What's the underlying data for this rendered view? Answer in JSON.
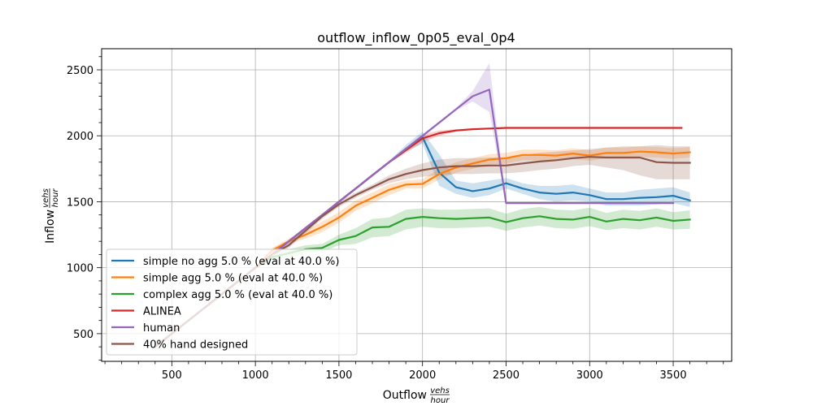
{
  "chart_data": {
    "type": "line",
    "title": "outflow_inflow_0p05_eval_0p4",
    "xlabel": "Outflow",
    "xlabel_frac_num": "vehs",
    "xlabel_frac_den": "hour",
    "ylabel": "Inflow",
    "ylabel_frac_num": "vehs",
    "ylabel_frac_den": "hour",
    "xlim": [
      80,
      3850
    ],
    "ylim": [
      290,
      2660
    ],
    "xticks": [
      500,
      1000,
      1500,
      2000,
      2500,
      3000,
      3500
    ],
    "xtick_labels": [
      "500",
      "1000",
      "1500",
      "2000",
      "2500",
      "3000",
      "3500"
    ],
    "yticks": [
      500,
      1000,
      1500,
      2000,
      2500
    ],
    "ytick_labels": [
      "500",
      "1000",
      "1500",
      "2000",
      "2500"
    ],
    "grid": true,
    "legend_position": "lower-left",
    "series": [
      {
        "name": "simple no agg 5.0 % (eval at 40.0 %)",
        "color": "#1f77b4",
        "x": [
          400,
          500,
          600,
          700,
          800,
          900,
          1000,
          1100,
          1200,
          1300,
          1400,
          1500,
          1600,
          1700,
          1800,
          1900,
          2000,
          2100,
          2200,
          2300,
          2400,
          2500,
          2600,
          2700,
          2800,
          2900,
          3000,
          3100,
          3200,
          3300,
          3400,
          3500,
          3600
        ],
        "y": [
          400,
          500,
          600,
          700,
          800,
          900,
          1000,
          1100,
          1200,
          1300,
          1400,
          1500,
          1600,
          1700,
          1800,
          1900,
          1990,
          1720,
          1610,
          1580,
          1600,
          1640,
          1600,
          1570,
          1560,
          1570,
          1550,
          1520,
          1520,
          1530,
          1535,
          1545,
          1510
        ],
        "lower": [
          390,
          490,
          590,
          690,
          790,
          890,
          990,
          1090,
          1190,
          1290,
          1390,
          1490,
          1590,
          1690,
          1790,
          1880,
          1940,
          1620,
          1560,
          1530,
          1550,
          1600,
          1560,
          1520,
          1500,
          1510,
          1500,
          1470,
          1470,
          1470,
          1480,
          1490,
          1460
        ],
        "upper": [
          410,
          510,
          610,
          710,
          810,
          910,
          1010,
          1110,
          1210,
          1310,
          1410,
          1510,
          1610,
          1710,
          1810,
          1930,
          2030,
          1860,
          1660,
          1640,
          1660,
          1680,
          1640,
          1620,
          1620,
          1630,
          1600,
          1570,
          1570,
          1590,
          1600,
          1610,
          1570
        ]
      },
      {
        "name": "simple agg 5.0 % (eval at 40.0 %)",
        "color": "#ff7f0e",
        "x": [
          400,
          500,
          600,
          700,
          800,
          900,
          1000,
          1100,
          1200,
          1300,
          1400,
          1500,
          1600,
          1700,
          1800,
          1900,
          2000,
          2100,
          2200,
          2300,
          2400,
          2500,
          2600,
          2700,
          2800,
          2900,
          3000,
          3100,
          3200,
          3300,
          3400,
          3500,
          3600
        ],
        "y": [
          400,
          500,
          600,
          700,
          800,
          900,
          1000,
          1130,
          1200,
          1250,
          1310,
          1380,
          1470,
          1530,
          1590,
          1630,
          1635,
          1710,
          1760,
          1790,
          1820,
          1830,
          1855,
          1855,
          1850,
          1865,
          1850,
          1870,
          1870,
          1880,
          1875,
          1865,
          1875
        ],
        "lower": [
          390,
          490,
          590,
          690,
          790,
          890,
          990,
          1110,
          1180,
          1220,
          1270,
          1340,
          1430,
          1490,
          1550,
          1600,
          1600,
          1670,
          1720,
          1750,
          1780,
          1790,
          1815,
          1815,
          1810,
          1825,
          1810,
          1830,
          1830,
          1840,
          1835,
          1825,
          1835
        ],
        "upper": [
          410,
          510,
          610,
          710,
          810,
          910,
          1010,
          1150,
          1220,
          1280,
          1350,
          1420,
          1510,
          1570,
          1630,
          1660,
          1670,
          1750,
          1800,
          1830,
          1860,
          1870,
          1895,
          1895,
          1890,
          1905,
          1890,
          1910,
          1910,
          1920,
          1915,
          1905,
          1915
        ]
      },
      {
        "name": "complex agg 5.0 % (eval at 40.0 %)",
        "color": "#2ca02c",
        "x": [
          400,
          500,
          600,
          700,
          800,
          900,
          1000,
          1100,
          1200,
          1300,
          1400,
          1500,
          1600,
          1700,
          1800,
          1900,
          2000,
          2100,
          2200,
          2300,
          2400,
          2500,
          2600,
          2700,
          2800,
          2900,
          3000,
          3100,
          3200,
          3300,
          3400,
          3500,
          3600
        ],
        "y": [
          400,
          500,
          600,
          700,
          800,
          900,
          1000,
          1080,
          1110,
          1140,
          1150,
          1210,
          1240,
          1305,
          1310,
          1370,
          1385,
          1375,
          1370,
          1375,
          1380,
          1345,
          1375,
          1390,
          1370,
          1365,
          1385,
          1350,
          1370,
          1360,
          1380,
          1355,
          1365
        ],
        "lower": [
          390,
          490,
          590,
          690,
          790,
          890,
          990,
          1060,
          1080,
          1110,
          1120,
          1170,
          1180,
          1230,
          1240,
          1290,
          1310,
          1300,
          1300,
          1305,
          1310,
          1280,
          1305,
          1320,
          1300,
          1295,
          1315,
          1285,
          1300,
          1290,
          1310,
          1290,
          1295
        ],
        "upper": [
          410,
          510,
          610,
          710,
          810,
          910,
          1010,
          1100,
          1140,
          1170,
          1180,
          1250,
          1300,
          1370,
          1380,
          1440,
          1450,
          1440,
          1440,
          1445,
          1450,
          1410,
          1445,
          1460,
          1440,
          1435,
          1455,
          1415,
          1440,
          1430,
          1450,
          1420,
          1435
        ]
      },
      {
        "name": "ALINEA",
        "color": "#d62728",
        "x": [
          400,
          500,
          600,
          700,
          800,
          900,
          1000,
          1100,
          1200,
          1300,
          1400,
          1500,
          1600,
          1700,
          1800,
          1900,
          2000,
          2100,
          2200,
          2300,
          2400,
          2500,
          2600,
          2700,
          2800,
          2900,
          3000,
          3100,
          3200,
          3300,
          3400,
          3500,
          3550
        ],
        "y": [
          400,
          500,
          600,
          700,
          800,
          900,
          1000,
          1100,
          1200,
          1300,
          1400,
          1500,
          1600,
          1700,
          1800,
          1890,
          1980,
          2020,
          2040,
          2050,
          2055,
          2060,
          2060,
          2060,
          2060,
          2060,
          2060,
          2060,
          2060,
          2060,
          2060,
          2060,
          2060
        ],
        "lower": [
          390,
          490,
          590,
          690,
          790,
          890,
          990,
          1090,
          1190,
          1290,
          1390,
          1490,
          1590,
          1690,
          1790,
          1870,
          1950,
          2000,
          2030,
          2045,
          2050,
          2058,
          2058,
          2058,
          2058,
          2058,
          2058,
          2058,
          2058,
          2058,
          2058,
          2058,
          2058
        ],
        "upper": [
          410,
          510,
          610,
          710,
          810,
          910,
          1010,
          1110,
          1210,
          1310,
          1410,
          1510,
          1610,
          1710,
          1810,
          1910,
          2010,
          2040,
          2050,
          2055,
          2060,
          2062,
          2062,
          2062,
          2062,
          2062,
          2062,
          2062,
          2062,
          2062,
          2062,
          2062,
          2062
        ]
      },
      {
        "name": "human",
        "color": "#9467bd",
        "x": [
          400,
          500,
          600,
          700,
          800,
          900,
          1000,
          1100,
          1200,
          1300,
          1400,
          1500,
          1600,
          1700,
          1800,
          1900,
          2000,
          2100,
          2200,
          2300,
          2400,
          2500,
          2600,
          2700,
          2800,
          2900,
          3000,
          3100,
          3200,
          3300,
          3400,
          3500
        ],
        "y": [
          400,
          500,
          600,
          700,
          800,
          900,
          1000,
          1100,
          1200,
          1300,
          1400,
          1500,
          1600,
          1700,
          1800,
          1900,
          2000,
          2100,
          2200,
          2300,
          2350,
          1490,
          1490,
          1490,
          1490,
          1490,
          1490,
          1490,
          1490,
          1490,
          1490,
          1490
        ],
        "lower": [
          395,
          495,
          595,
          695,
          795,
          895,
          995,
          1095,
          1195,
          1295,
          1395,
          1495,
          1595,
          1695,
          1795,
          1890,
          1990,
          2090,
          2190,
          2260,
          2180,
          1485,
          1485,
          1485,
          1485,
          1485,
          1485,
          1485,
          1485,
          1485,
          1485,
          1485
        ],
        "upper": [
          405,
          505,
          605,
          705,
          805,
          905,
          1005,
          1105,
          1205,
          1305,
          1405,
          1505,
          1605,
          1705,
          1805,
          1910,
          2010,
          2110,
          2210,
          2340,
          2550,
          1495,
          1495,
          1495,
          1495,
          1495,
          1495,
          1495,
          1495,
          1495,
          1495,
          1495
        ]
      },
      {
        "name": "40% hand designed",
        "color": "#8c564b",
        "x": [
          400,
          500,
          600,
          700,
          800,
          900,
          1000,
          1100,
          1200,
          1300,
          1400,
          1500,
          1600,
          1700,
          1800,
          1900,
          2000,
          2100,
          2200,
          2300,
          2400,
          2500,
          2600,
          2700,
          2800,
          2900,
          3000,
          3100,
          3200,
          3300,
          3400,
          3500,
          3600
        ],
        "y": [
          400,
          500,
          600,
          700,
          800,
          900,
          1000,
          1100,
          1170,
          1280,
          1390,
          1480,
          1550,
          1610,
          1670,
          1710,
          1740,
          1760,
          1770,
          1770,
          1775,
          1775,
          1790,
          1805,
          1815,
          1830,
          1840,
          1835,
          1835,
          1835,
          1800,
          1795,
          1795
        ],
        "lower": [
          390,
          490,
          590,
          690,
          790,
          890,
          990,
          1090,
          1150,
          1260,
          1370,
          1460,
          1530,
          1590,
          1640,
          1670,
          1690,
          1700,
          1710,
          1710,
          1715,
          1715,
          1725,
          1740,
          1750,
          1770,
          1780,
          1760,
          1740,
          1700,
          1670,
          1670,
          1670
        ],
        "upper": [
          410,
          510,
          610,
          710,
          810,
          910,
          1010,
          1110,
          1190,
          1300,
          1410,
          1500,
          1570,
          1630,
          1700,
          1750,
          1790,
          1820,
          1830,
          1830,
          1835,
          1835,
          1855,
          1870,
          1880,
          1890,
          1900,
          1910,
          1920,
          1920,
          1930,
          1920,
          1920
        ]
      }
    ]
  }
}
